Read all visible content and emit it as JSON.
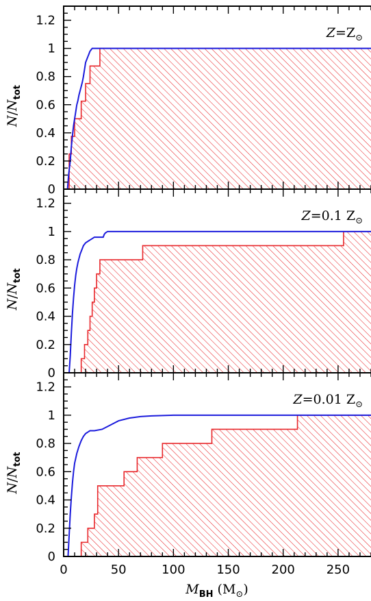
{
  "chart_data": [
    {
      "type": "line",
      "panel_label": {
        "var": "Z",
        "eq": "=",
        "value": "Z",
        "sun": "⊙"
      },
      "xlabel": {
        "main": "M",
        "sub": "BH",
        "unit_open": " (M",
        "sun": "⊙",
        "unit_close": ")"
      },
      "ylabel": {
        "main": "N",
        "slash": "/",
        "main2": "N",
        "sub": "tot"
      },
      "xlim": [
        0,
        280
      ],
      "ylim": [
        0,
        1.3
      ],
      "xticks": [
        0,
        50,
        100,
        150,
        200,
        250
      ],
      "yticks": [
        0,
        0.2,
        0.4,
        0.6,
        0.8,
        1,
        1.2
      ],
      "ytick_labels": [
        "0",
        "0.2",
        "0.4",
        "0.6",
        "0.8",
        "1",
        "1.2"
      ],
      "series": [
        {
          "kind": "line",
          "color": "#1a1adc",
          "x": [
            0,
            3.5,
            4.5,
            6,
            7,
            8,
            9,
            10,
            11,
            12,
            13,
            14,
            15,
            16,
            17,
            18,
            19,
            20,
            21,
            22,
            23,
            24,
            25,
            26,
            27,
            30,
            35,
            40,
            280
          ],
          "y": [
            0,
            0,
            0.1,
            0.2,
            0.3,
            0.38,
            0.45,
            0.5,
            0.55,
            0.6,
            0.63,
            0.67,
            0.7,
            0.73,
            0.76,
            0.8,
            0.85,
            0.9,
            0.92,
            0.94,
            0.96,
            0.98,
            0.99,
            1,
            1,
            1,
            1,
            1,
            1
          ]
        },
        {
          "kind": "step-hatched",
          "color": "#e8262a",
          "x": [
            0,
            5,
            7,
            10,
            16,
            20,
            24,
            28,
            33,
            280
          ],
          "y": [
            0,
            0.25,
            0.375,
            0.5,
            0.625,
            0.75,
            0.875,
            0.875,
            1,
            1
          ]
        }
      ]
    },
    {
      "type": "line",
      "panel_label": {
        "var": "Z",
        "eq": "=",
        "value": "0.1  Z",
        "sun": "⊙"
      },
      "xlabel": {
        "main": "M",
        "sub": "BH",
        "unit_open": " (M",
        "sun": "⊙",
        "unit_close": ")"
      },
      "ylabel": {
        "main": "N",
        "slash": "/",
        "main2": "N",
        "sub": "tot"
      },
      "xlim": [
        0,
        280
      ],
      "ylim": [
        0,
        1.3
      ],
      "xticks": [
        0,
        50,
        100,
        150,
        200,
        250
      ],
      "yticks": [
        0,
        0.2,
        0.4,
        0.6,
        0.8,
        1,
        1.2
      ],
      "ytick_labels": [
        "0",
        "0.2",
        "0.4",
        "0.6",
        "0.8",
        "1",
        "1.2"
      ],
      "series": [
        {
          "kind": "line",
          "color": "#1a1adc",
          "x": [
            0,
            5,
            6,
            7,
            8,
            9,
            10,
            11,
            12,
            13,
            14,
            15,
            16,
            17,
            18,
            19,
            20,
            22,
            24,
            26,
            28,
            30,
            33,
            36,
            37,
            38,
            40,
            280
          ],
          "y": [
            0,
            0,
            0.12,
            0.28,
            0.42,
            0.53,
            0.62,
            0.69,
            0.74,
            0.78,
            0.81,
            0.84,
            0.86,
            0.88,
            0.9,
            0.91,
            0.92,
            0.93,
            0.94,
            0.95,
            0.96,
            0.96,
            0.96,
            0.96,
            0.98,
            0.99,
            1,
            1
          ]
        },
        {
          "kind": "step-hatched",
          "color": "#e8262a",
          "x": [
            0,
            16,
            19,
            22,
            24,
            26,
            28,
            30,
            33,
            38,
            45,
            72,
            100,
            250,
            255,
            280
          ],
          "y": [
            0,
            0.1,
            0.2,
            0.3,
            0.4,
            0.5,
            0.6,
            0.7,
            0.8,
            0.8,
            0.8,
            0.9,
            0.9,
            0.9,
            1,
            1
          ]
        }
      ]
    },
    {
      "type": "line",
      "panel_label": {
        "var": "Z",
        "eq": "=",
        "value": "0.01  Z",
        "sun": "⊙"
      },
      "xlabel": {
        "main": "M",
        "sub": "BH",
        "unit_open": " (M",
        "sun": "⊙",
        "unit_close": ")"
      },
      "ylabel": {
        "main": "N",
        "slash": "/",
        "main2": "N",
        "sub": "tot"
      },
      "xlim": [
        0,
        280
      ],
      "ylim": [
        0,
        1.3
      ],
      "xticks": [
        0,
        50,
        100,
        150,
        200,
        250
      ],
      "xtick_labels": [
        "0",
        "50",
        "100",
        "150",
        "200",
        "250"
      ],
      "yticks": [
        0,
        0.2,
        0.4,
        0.6,
        0.8,
        1,
        1.2
      ],
      "ytick_labels": [
        "0",
        "0.2",
        "0.4",
        "0.6",
        "0.8",
        "1",
        "1.2"
      ],
      "series": [
        {
          "kind": "line",
          "color": "#1a1adc",
          "x": [
            0,
            4,
            5,
            6,
            7,
            8,
            9,
            10,
            12,
            14,
            16,
            18,
            20,
            22,
            24,
            26,
            28,
            35,
            40,
            45,
            50,
            60,
            70,
            80,
            100,
            120,
            150,
            200,
            280
          ],
          "y": [
            0,
            0,
            0.15,
            0.3,
            0.42,
            0.52,
            0.6,
            0.66,
            0.73,
            0.78,
            0.82,
            0.85,
            0.87,
            0.88,
            0.89,
            0.89,
            0.89,
            0.9,
            0.92,
            0.94,
            0.96,
            0.98,
            0.99,
            0.995,
            1,
            1,
            1,
            1,
            1
          ]
        },
        {
          "kind": "step-hatched",
          "color": "#e8262a",
          "x": [
            0,
            16,
            22,
            28,
            31,
            43,
            55,
            67,
            90,
            135,
            213,
            280
          ],
          "y": [
            0,
            0.1,
            0.2,
            0.3,
            0.5,
            0.5,
            0.6,
            0.7,
            0.8,
            0.9,
            1,
            1
          ]
        }
      ]
    }
  ]
}
